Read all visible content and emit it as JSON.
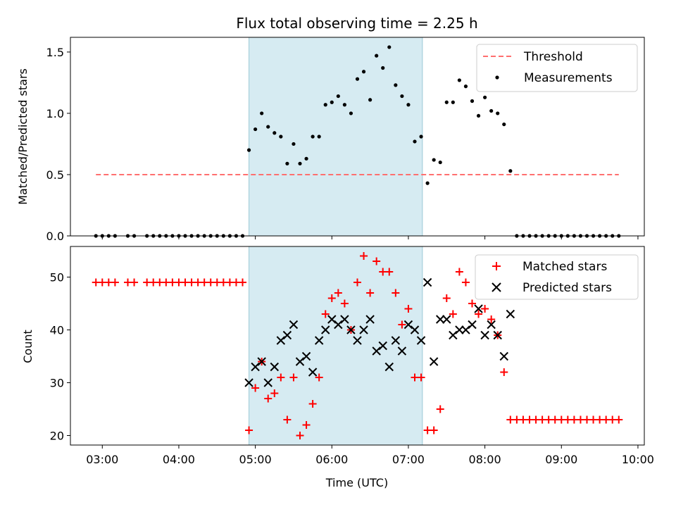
{
  "chart_data": [
    {
      "type": "scatter",
      "title": "Flux total observing time = 2.25 h",
      "xlabel": "",
      "ylabel": "Matched/Predicted stars",
      "ylim": [
        0,
        1.62
      ],
      "yticks": [
        "0.0",
        "0.5",
        "1.0",
        "1.5"
      ],
      "xlim": [
        "02:35",
        "10:05"
      ],
      "xticks": [
        "03:00",
        "04:00",
        "05:00",
        "06:00",
        "07:00",
        "08:00",
        "09:00",
        "10:00"
      ],
      "xtick_labels_shown": false,
      "shaded_region": {
        "x": [
          "04:55",
          "07:11"
        ],
        "color": "#add8e6"
      },
      "legend": {
        "position": "top-right",
        "entries": [
          "Threshold",
          "Measurements"
        ]
      },
      "colors": {
        "threshold": "#ff6f6f",
        "measurements": "#000000",
        "shade": "#add8e6"
      },
      "series": [
        {
          "name": "Threshold",
          "style": "dashed-line",
          "x": [
            "02:55",
            "09:45"
          ],
          "y": [
            0.5,
            0.5
          ]
        },
        {
          "name": "Measurements",
          "style": "dot",
          "x": [
            "02:55",
            "03:00",
            "03:05",
            "03:10",
            "03:20",
            "03:25",
            "03:35",
            "03:40",
            "03:45",
            "03:50",
            "03:55",
            "04:00",
            "04:05",
            "04:10",
            "04:15",
            "04:20",
            "04:25",
            "04:30",
            "04:35",
            "04:40",
            "04:45",
            "04:50",
            "04:55",
            "05:00",
            "05:05",
            "05:10",
            "05:15",
            "05:20",
            "05:25",
            "05:30",
            "05:35",
            "05:40",
            "05:45",
            "05:50",
            "05:55",
            "06:00",
            "06:05",
            "06:10",
            "06:15",
            "06:20",
            "06:25",
            "06:30",
            "06:35",
            "06:40",
            "06:45",
            "06:50",
            "06:55",
            "07:00",
            "07:05",
            "07:10",
            "07:15",
            "07:20",
            "07:25",
            "07:30",
            "07:35",
            "07:40",
            "07:45",
            "07:50",
            "07:55",
            "08:00",
            "08:05",
            "08:10",
            "08:15",
            "08:20",
            "08:25",
            "08:30",
            "08:35",
            "08:40",
            "08:45",
            "08:50",
            "08:55",
            "09:00",
            "09:05",
            "09:10",
            "09:15",
            "09:20",
            "09:25",
            "09:30",
            "09:35",
            "09:40",
            "09:45"
          ],
          "y": [
            0,
            0,
            0,
            0,
            0,
            0,
            0,
            0,
            0,
            0,
            0,
            0,
            0,
            0,
            0,
            0,
            0,
            0,
            0,
            0,
            0,
            0,
            0.7,
            0.87,
            1.0,
            0.89,
            0.84,
            0.81,
            0.59,
            0.75,
            0.59,
            0.63,
            0.81,
            0.81,
            1.07,
            1.09,
            1.14,
            1.07,
            1.0,
            1.28,
            1.34,
            1.11,
            1.47,
            1.37,
            1.54,
            1.23,
            1.14,
            1.07,
            0.77,
            0.81,
            0.43,
            0.62,
            0.6,
            1.09,
            1.09,
            1.27,
            1.22,
            1.1,
            0.98,
            1.13,
            1.02,
            1.0,
            0.91,
            0.53,
            0,
            0,
            0,
            0,
            0,
            0,
            0,
            0,
            0,
            0,
            0,
            0,
            0,
            0,
            0,
            0,
            0
          ]
        }
      ]
    },
    {
      "type": "scatter",
      "title": "",
      "xlabel": "Time (UTC)",
      "ylabel": "Count",
      "ylim": [
        18.2,
        55.8
      ],
      "yticks": [
        "20",
        "30",
        "40",
        "50"
      ],
      "xlim": [
        "02:35",
        "10:05"
      ],
      "xticks": [
        "03:00",
        "04:00",
        "05:00",
        "06:00",
        "07:00",
        "08:00",
        "09:00",
        "10:00"
      ],
      "xtick_labels_shown": true,
      "shaded_region": {
        "x": [
          "04:55",
          "07:11"
        ],
        "color": "#add8e6"
      },
      "legend": {
        "position": "top-right",
        "entries": [
          "Matched stars",
          "Predicted stars"
        ]
      },
      "colors": {
        "matched": "#ff0000",
        "predicted": "#000000",
        "shade": "#add8e6"
      },
      "series": [
        {
          "name": "Matched stars",
          "marker": "plus",
          "x": [
            "02:55",
            "03:00",
            "03:05",
            "03:10",
            "03:20",
            "03:25",
            "03:35",
            "03:40",
            "03:45",
            "03:50",
            "03:55",
            "04:00",
            "04:05",
            "04:10",
            "04:15",
            "04:20",
            "04:25",
            "04:30",
            "04:35",
            "04:40",
            "04:45",
            "04:50",
            "04:55",
            "05:00",
            "05:05",
            "05:10",
            "05:15",
            "05:20",
            "05:25",
            "05:30",
            "05:35",
            "05:40",
            "05:45",
            "05:50",
            "05:55",
            "06:00",
            "06:05",
            "06:10",
            "06:15",
            "06:20",
            "06:25",
            "06:30",
            "06:35",
            "06:40",
            "06:45",
            "06:50",
            "06:55",
            "07:00",
            "07:05",
            "07:10",
            "07:15",
            "07:20",
            "07:25",
            "07:30",
            "07:35",
            "07:40",
            "07:45",
            "07:50",
            "07:55",
            "08:00",
            "08:05",
            "08:10",
            "08:15",
            "08:20",
            "08:25",
            "08:30",
            "08:35",
            "08:40",
            "08:45",
            "08:50",
            "08:55",
            "09:00",
            "09:05",
            "09:10",
            "09:15",
            "09:20",
            "09:25",
            "09:30",
            "09:35",
            "09:40",
            "09:45"
          ],
          "y": [
            49,
            49,
            49,
            49,
            49,
            49,
            49,
            49,
            49,
            49,
            49,
            49,
            49,
            49,
            49,
            49,
            49,
            49,
            49,
            49,
            49,
            49,
            21,
            29,
            34,
            27,
            28,
            31,
            23,
            31,
            20,
            22,
            26,
            31,
            43,
            46,
            47,
            45,
            40,
            49,
            54,
            47,
            53,
            51,
            51,
            47,
            41,
            44,
            31,
            31,
            21,
            21,
            25,
            46,
            43,
            51,
            49,
            45,
            43,
            44,
            42,
            39,
            32,
            23,
            23,
            23,
            23,
            23,
            23,
            23,
            23,
            23,
            23,
            23,
            23,
            23,
            23,
            23,
            23,
            23,
            23
          ]
        },
        {
          "name": "Predicted stars",
          "marker": "x",
          "x": [
            "04:55",
            "05:00",
            "05:05",
            "05:10",
            "05:15",
            "05:20",
            "05:25",
            "05:30",
            "05:35",
            "05:40",
            "05:45",
            "05:50",
            "05:55",
            "06:00",
            "06:05",
            "06:10",
            "06:15",
            "06:20",
            "06:25",
            "06:30",
            "06:35",
            "06:40",
            "06:45",
            "06:50",
            "06:55",
            "07:00",
            "07:05",
            "07:10",
            "07:15",
            "07:20",
            "07:25",
            "07:30",
            "07:35",
            "07:40",
            "07:45",
            "07:50",
            "07:55",
            "08:00",
            "08:05",
            "08:10",
            "08:15",
            "08:20",
            "08:25"
          ],
          "y": [
            30,
            33,
            34,
            30,
            33,
            38,
            39,
            41,
            34,
            35,
            32,
            38,
            40,
            42,
            41,
            42,
            40,
            38,
            40,
            42,
            36,
            37,
            33,
            38,
            36,
            41,
            40,
            38,
            49,
            34,
            42,
            42,
            39,
            40,
            40,
            41,
            44,
            39,
            41,
            39,
            35,
            43,
            null
          ]
        }
      ]
    }
  ]
}
